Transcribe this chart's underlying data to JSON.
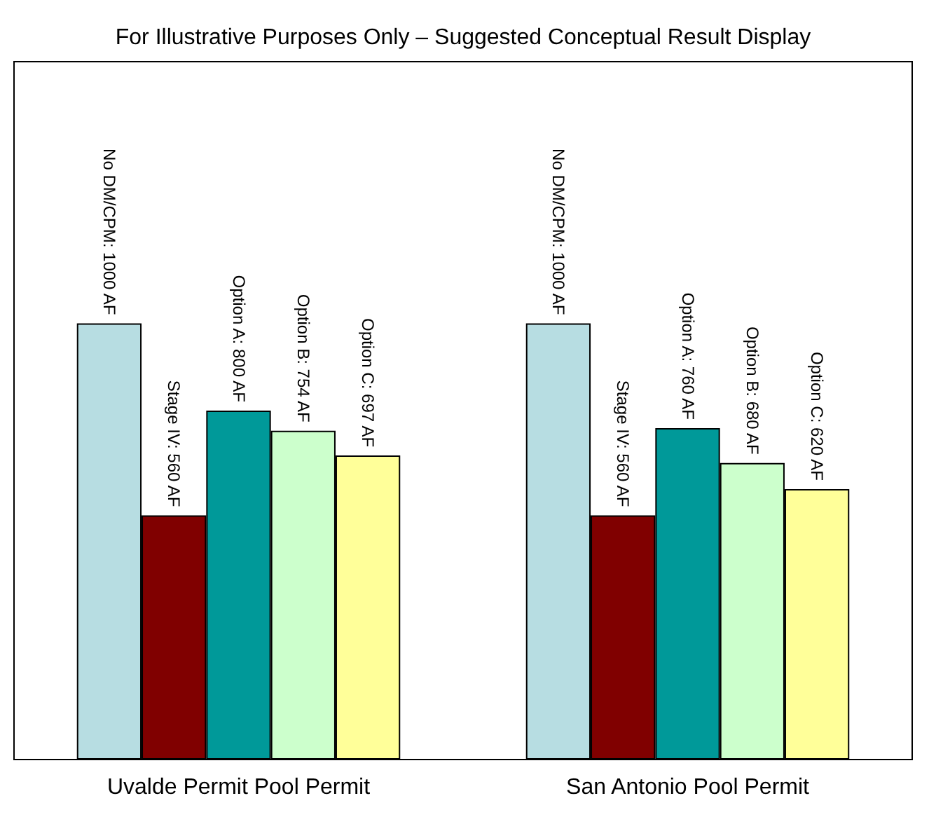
{
  "chart_data": {
    "type": "bar",
    "title": "For Illustrative Purposes Only – Suggested Conceptual Result Display",
    "categories": [
      "Uvalde Permit Pool Permit",
      "San Antonio Pool Permit"
    ],
    "series": [
      {
        "color": "#b7dde2",
        "values": [
          1000,
          1000
        ],
        "value_labels": [
          "No DM/CPM: 1000 AF",
          "No DM/CPM: 1000 AF"
        ]
      },
      {
        "color": "#800000",
        "values": [
          560,
          560
        ],
        "value_labels": [
          "Stage IV: 560 AF",
          "Stage IV: 560 AF"
        ]
      },
      {
        "color": "#009999",
        "values": [
          800,
          760
        ],
        "value_labels": [
          "Option A: 800 AF",
          "Option A: 760 AF"
        ]
      },
      {
        "color": "#ccffcc",
        "values": [
          754,
          680
        ],
        "value_labels": [
          "Option B: 754 AF",
          "Option B: 680 AF"
        ]
      },
      {
        "color": "#ffff99",
        "values": [
          697,
          620
        ],
        "value_labels": [
          "Option C: 697 AF",
          "Option C: 620 AF"
        ]
      }
    ]
  }
}
